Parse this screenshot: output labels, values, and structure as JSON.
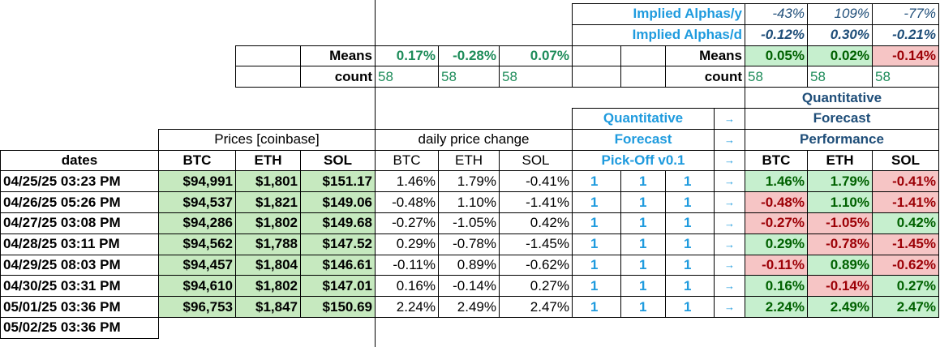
{
  "implied_alphas_y": {
    "label": "Implied Alphas/y",
    "values": [
      "-43%",
      "109%",
      "-77%"
    ]
  },
  "implied_alphas_d": {
    "label": "Implied Alphas/d",
    "values": [
      "-0.12%",
      "0.30%",
      "-0.21%"
    ]
  },
  "means_changes": {
    "label": "Means",
    "values": [
      "0.17%",
      "-0.28%",
      "0.07%"
    ]
  },
  "count_changes": {
    "label": "count",
    "values": [
      58,
      58,
      58
    ]
  },
  "means_performance": {
    "label": "Means",
    "values": [
      "0.05%",
      "0.02%",
      "-0.14%"
    ]
  },
  "count_performance": {
    "label": "count",
    "values": [
      58,
      58,
      58
    ]
  },
  "headers": {
    "quantitative_top": "Quantitative",
    "forecast_top": "Forecast",
    "performance": "Performance",
    "quantitative": "Quantitative",
    "forecast": "Forecast",
    "pick_off": "Pick-Off v0.1",
    "prices_group": "Prices [coinbase]",
    "change_group": "daily price change",
    "dates": "dates",
    "price_cols": [
      "BTC",
      "ETH",
      "SOL"
    ],
    "change_cols": [
      "BTC",
      "ETH",
      "SOL"
    ],
    "perf_cols": [
      "BTC",
      "ETH",
      "SOL"
    ],
    "arrow": "→"
  },
  "rows": [
    {
      "date": "04/25/25 03:23 PM",
      "prices": [
        "$94,991",
        "$1,801",
        "$151.17"
      ],
      "changes": [
        "1.46%",
        "1.79%",
        "-0.41%"
      ],
      "forecast": [
        1,
        1,
        1
      ],
      "performance": [
        "1.46%",
        "1.79%",
        "-0.41%"
      ]
    },
    {
      "date": "04/26/25 05:26 PM",
      "prices": [
        "$94,537",
        "$1,821",
        "$149.06"
      ],
      "changes": [
        "-0.48%",
        "1.10%",
        "-1.41%"
      ],
      "forecast": [
        1,
        1,
        1
      ],
      "performance": [
        "-0.48%",
        "1.10%",
        "-1.41%"
      ]
    },
    {
      "date": "04/27/25 03:08 PM",
      "prices": [
        "$94,286",
        "$1,802",
        "$149.68"
      ],
      "changes": [
        "-0.27%",
        "-1.05%",
        "0.42%"
      ],
      "forecast": [
        1,
        1,
        1
      ],
      "performance": [
        "-0.27%",
        "-1.05%",
        "0.42%"
      ]
    },
    {
      "date": "04/28/25 03:11 PM",
      "prices": [
        "$94,562",
        "$1,788",
        "$147.52"
      ],
      "changes": [
        "0.29%",
        "-0.78%",
        "-1.45%"
      ],
      "forecast": [
        1,
        1,
        1
      ],
      "performance": [
        "0.29%",
        "-0.78%",
        "-1.45%"
      ]
    },
    {
      "date": "04/29/25 08:03 PM",
      "prices": [
        "$94,457",
        "$1,804",
        "$146.61"
      ],
      "changes": [
        "-0.11%",
        "0.89%",
        "-0.62%"
      ],
      "forecast": [
        1,
        1,
        1
      ],
      "performance": [
        "-0.11%",
        "0.89%",
        "-0.62%"
      ]
    },
    {
      "date": "04/30/25 03:31 PM",
      "prices": [
        "$94,610",
        "$1,802",
        "$147.01"
      ],
      "changes": [
        "0.16%",
        "-0.14%",
        "0.27%"
      ],
      "forecast": [
        1,
        1,
        1
      ],
      "performance": [
        "0.16%",
        "-0.14%",
        "0.27%"
      ]
    },
    {
      "date": "05/01/25 03:36 PM",
      "prices": [
        "$96,753",
        "$1,847",
        "$150.69"
      ],
      "changes": [
        "2.24%",
        "2.49%",
        "2.47%"
      ],
      "forecast": [
        1,
        1,
        1
      ],
      "performance": [
        "2.24%",
        "2.49%",
        "2.47%"
      ]
    }
  ],
  "extra_date": "05/02/25 03:36 PM"
}
